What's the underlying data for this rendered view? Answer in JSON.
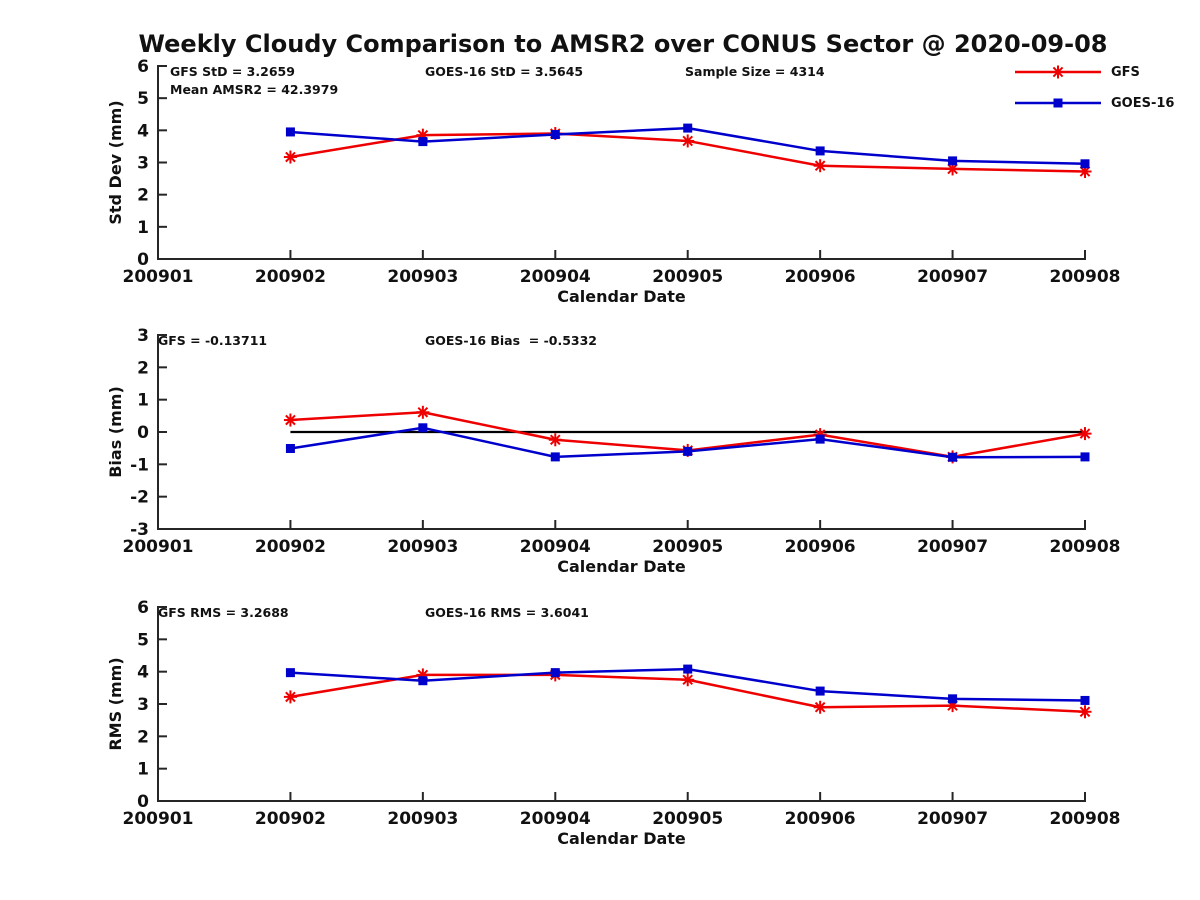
{
  "title": "Weekly Cloudy Comparison to AMSR2 over CONUS Sector @ 2020-09-08",
  "legend": {
    "position": "top-right",
    "entries": [
      {
        "label": "GFS",
        "color": "#ee0000",
        "marker": "asterisk"
      },
      {
        "label": "GOES-16",
        "color": "#0000cd",
        "marker": "square"
      }
    ]
  },
  "colors": {
    "gfs": "#ee0000",
    "goes16": "#0000cd",
    "axis": "#262626",
    "text": "#111111",
    "zero_line": "#000000"
  },
  "chart_data": [
    {
      "type": "line",
      "name": "std-dev",
      "xlabel": "Calendar Date",
      "ylabel": "Std Dev (mm)",
      "ylim": [
        0,
        6
      ],
      "yticks": [
        0,
        1,
        2,
        3,
        4,
        5,
        6
      ],
      "grid": false,
      "categories": [
        "200901",
        "200902",
        "200903",
        "200904",
        "200905",
        "200906",
        "200907",
        "200908"
      ],
      "zero_line": false,
      "annotations": [
        {
          "text": "GFS StD = 3.2659",
          "slot": "left",
          "row": 0
        },
        {
          "text": "Mean AMSR2 = 42.3979",
          "slot": "left",
          "row": 1
        },
        {
          "text": "GOES-16 StD = 3.5645",
          "slot": "center",
          "row": 0
        },
        {
          "text": "Sample Size = 4314",
          "slot": "right",
          "row": 0
        }
      ],
      "series": [
        {
          "name": "GFS",
          "color": "#ee0000",
          "marker": "asterisk",
          "x": [
            "200902",
            "200903",
            "200904",
            "200905",
            "200906",
            "200907",
            "200908"
          ],
          "values": [
            3.17,
            3.85,
            3.9,
            3.67,
            2.9,
            2.8,
            2.72
          ]
        },
        {
          "name": "GOES-16",
          "color": "#0000cd",
          "marker": "square",
          "x": [
            "200902",
            "200903",
            "200904",
            "200905",
            "200906",
            "200907",
            "200908"
          ],
          "values": [
            3.95,
            3.65,
            3.87,
            4.07,
            3.36,
            3.05,
            2.96
          ]
        }
      ]
    },
    {
      "type": "line",
      "name": "bias",
      "xlabel": "Calendar Date",
      "ylabel": "Bias (mm)",
      "ylim": [
        -3,
        3
      ],
      "yticks": [
        -3,
        -2,
        -1,
        0,
        1,
        2,
        3
      ],
      "grid": false,
      "categories": [
        "200901",
        "200902",
        "200903",
        "200904",
        "200905",
        "200906",
        "200907",
        "200908"
      ],
      "zero_line": true,
      "annotations": [
        {
          "text": "GFS = -0.13711",
          "slot": "left",
          "row": 0
        },
        {
          "text": "GOES-16 Bias  = -0.5332",
          "slot": "center",
          "row": 0
        }
      ],
      "series": [
        {
          "name": "GFS",
          "color": "#ee0000",
          "marker": "asterisk",
          "x": [
            "200902",
            "200903",
            "200904",
            "200905",
            "200906",
            "200907",
            "200908"
          ],
          "values": [
            0.37,
            0.61,
            -0.24,
            -0.57,
            -0.08,
            -0.77,
            -0.05
          ]
        },
        {
          "name": "GOES-16",
          "color": "#0000cd",
          "marker": "square",
          "x": [
            "200902",
            "200903",
            "200904",
            "200905",
            "200906",
            "200907",
            "200908"
          ],
          "values": [
            -0.51,
            0.13,
            -0.77,
            -0.6,
            -0.22,
            -0.78,
            -0.77
          ]
        }
      ]
    },
    {
      "type": "line",
      "name": "rms",
      "xlabel": "Calendar Date",
      "ylabel": "RMS (mm)",
      "ylim": [
        0,
        6
      ],
      "yticks": [
        0,
        1,
        2,
        3,
        4,
        5,
        6
      ],
      "grid": false,
      "categories": [
        "200901",
        "200902",
        "200903",
        "200904",
        "200905",
        "200906",
        "200907",
        "200908"
      ],
      "zero_line": false,
      "annotations": [
        {
          "text": "GFS RMS = 3.2688",
          "slot": "left",
          "row": 0
        },
        {
          "text": "GOES-16 RMS = 3.6041",
          "slot": "center",
          "row": 0
        }
      ],
      "series": [
        {
          "name": "GFS",
          "color": "#ee0000",
          "marker": "asterisk",
          "x": [
            "200902",
            "200903",
            "200904",
            "200905",
            "200906",
            "200907",
            "200908"
          ],
          "values": [
            3.22,
            3.9,
            3.9,
            3.75,
            2.9,
            2.95,
            2.76
          ]
        },
        {
          "name": "GOES-16",
          "color": "#0000cd",
          "marker": "square",
          "x": [
            "200902",
            "200903",
            "200904",
            "200905",
            "200906",
            "200907",
            "200908"
          ],
          "values": [
            3.97,
            3.72,
            3.97,
            4.08,
            3.4,
            3.16,
            3.11
          ]
        }
      ]
    }
  ]
}
